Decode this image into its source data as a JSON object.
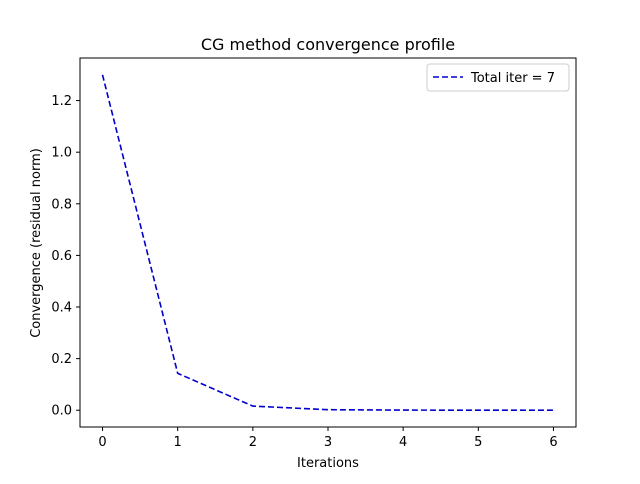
{
  "chart_data": {
    "type": "line",
    "title": "CG method convergence profile",
    "xlabel": "Iterations",
    "ylabel": "Convergence (residual norm)",
    "x": [
      0,
      1,
      2,
      3,
      4,
      5,
      6
    ],
    "series": [
      {
        "name": "Total iter = 7",
        "values": [
          1.3,
          0.143,
          0.016,
          0.002,
          0.0003,
          0.0001,
          0.0
        ],
        "color": "#0000cc",
        "linestyle": "dashed"
      }
    ],
    "xlim": [
      -0.3,
      6.3
    ],
    "ylim": [
      -0.065,
      1.365
    ],
    "xticks": [
      0,
      1,
      2,
      3,
      4,
      5,
      6
    ],
    "xtick_labels": [
      "0",
      "1",
      "2",
      "3",
      "4",
      "5",
      "6"
    ],
    "yticks": [
      0.0,
      0.2,
      0.4,
      0.6,
      0.8,
      1.0,
      1.2
    ],
    "ytick_labels": [
      "0.0",
      "0.2",
      "0.4",
      "0.6",
      "0.8",
      "1.0",
      "1.2"
    ],
    "grid": false,
    "legend_position": "top-right"
  }
}
